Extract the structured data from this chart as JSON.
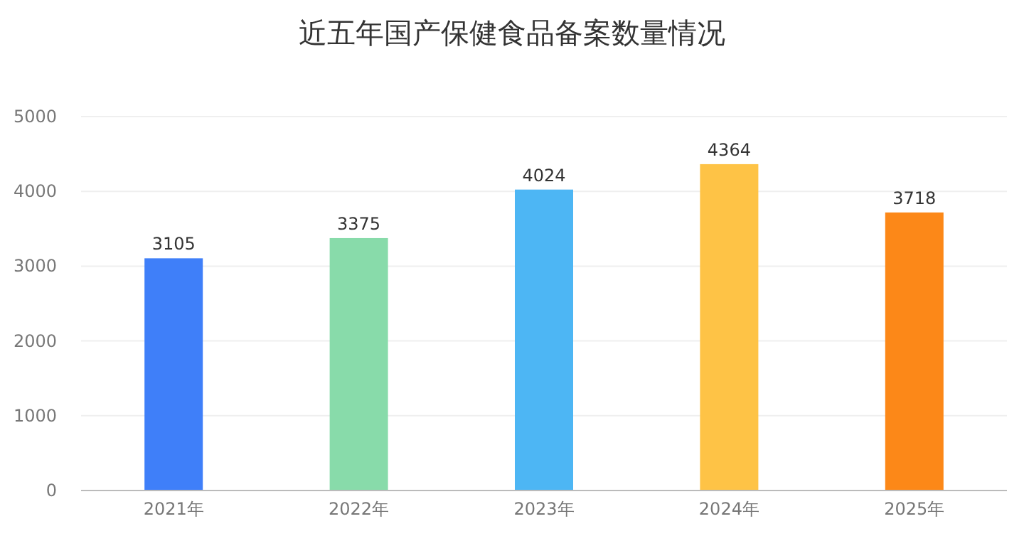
{
  "chart_data": {
    "type": "bar",
    "title": "近五年国产保健食品备案数量情况",
    "categories": [
      "2021年",
      "2022年",
      "2023年",
      "2024年",
      "2025年"
    ],
    "values": [
      3105,
      3375,
      4024,
      4364,
      3718
    ],
    "colors": [
      "#3f7ff9",
      "#88dbaa",
      "#4db6f4",
      "#fec346",
      "#fc8818"
    ],
    "ylim": [
      0,
      5000
    ],
    "yticks": [
      0,
      1000,
      2000,
      3000,
      4000,
      5000
    ],
    "grid": "y",
    "data_labels": true
  }
}
